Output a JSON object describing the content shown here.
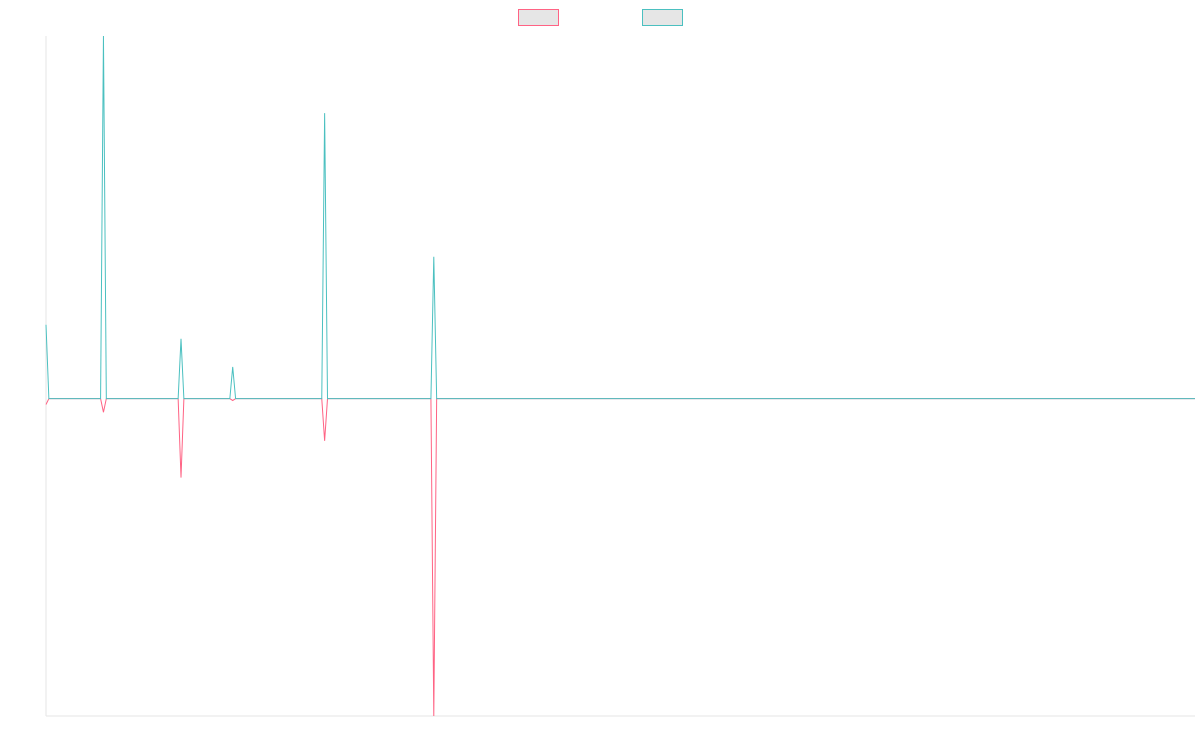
{
  "chart_data": {
    "type": "line",
    "x": [
      0,
      1,
      19,
      20,
      21,
      46,
      47,
      48,
      64,
      65,
      66,
      96,
      97,
      98,
      134,
      135,
      136,
      400
    ],
    "xlim": [
      0,
      400
    ],
    "ylim": [
      -0.7,
      0.8
    ],
    "series": [
      {
        "color": "#ff6384",
        "values": [
          -0.013,
          0,
          0,
          -0.03,
          0,
          0,
          -0.174,
          0,
          0,
          -0.004,
          0,
          0,
          -0.093,
          0,
          0,
          -0.7,
          0,
          0
        ]
      },
      {
        "color": "#4bc0c0",
        "values": [
          0.163,
          0,
          0,
          0.8,
          0,
          0,
          0.132,
          0,
          0,
          0.07,
          0,
          0,
          0.63,
          0,
          0,
          0.313,
          0,
          0
        ]
      }
    ]
  }
}
